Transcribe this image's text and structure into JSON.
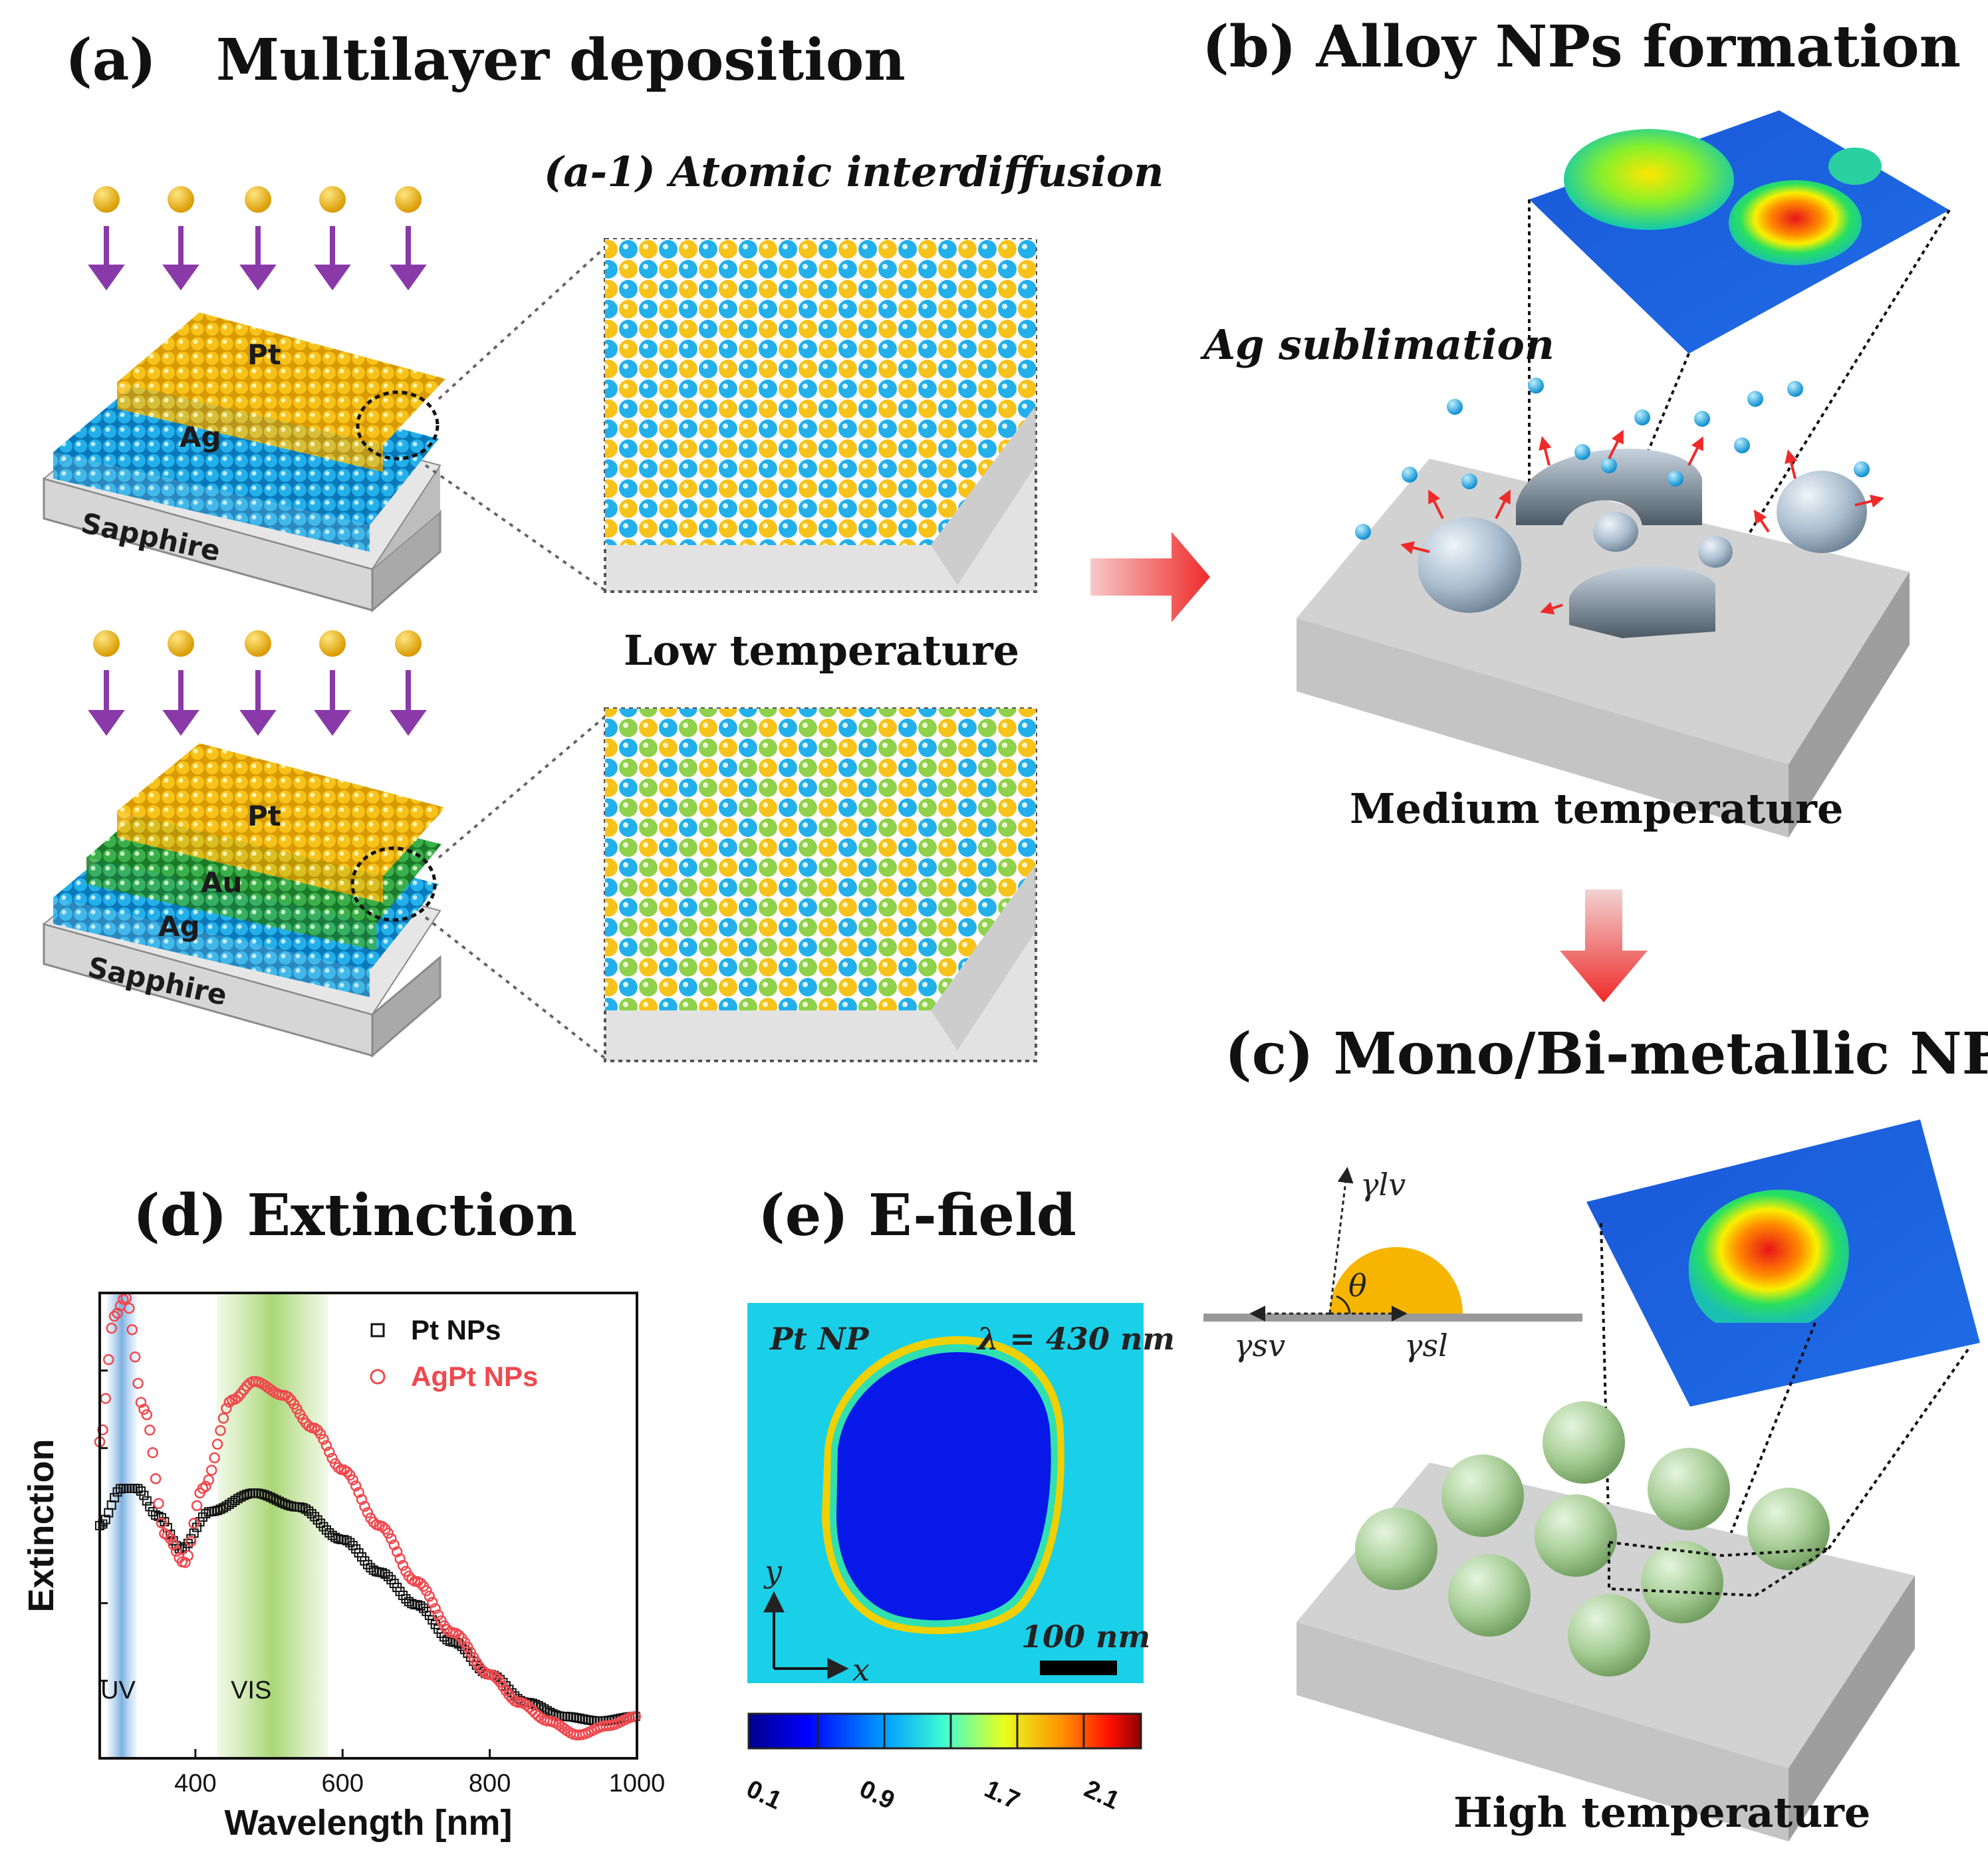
{
  "panels": {
    "a": {
      "title": "(a)   Multilayer deposition"
    },
    "a1": {
      "title": "(a-1) Atomic interdiffusion"
    },
    "b": {
      "title": "(b) Alloy NPs formation",
      "note": "Ag sublimation",
      "temp": "Medium temperature"
    },
    "c": {
      "title": "(c) Mono/Bi-metallic NPs",
      "temp": "High temperature"
    },
    "d": {
      "title": "(d) Extinction"
    },
    "e": {
      "title": "(e) E-field"
    },
    "low_temp": "Low temperature"
  },
  "stack_top": {
    "layers": [
      "Pt",
      "Ag"
    ],
    "substrate": "Sapphire"
  },
  "stack_bottom": {
    "layers": [
      "Pt",
      "Au",
      "Ag"
    ],
    "substrate": "Sapphire"
  },
  "wetting": {
    "gamma_lv": "γlv",
    "gamma_sv": "γsv",
    "gamma_sl": "γsl",
    "theta": "θ"
  },
  "efield": {
    "np_label": "Pt NP",
    "wavelength": "λ = 430 nm",
    "scale_bar": "100 nm",
    "axis_x": "x",
    "axis_y": "y",
    "colorbar_ticks": [
      "0.1",
      "0.9",
      "1.7",
      "2.1"
    ]
  },
  "colors": {
    "pt": "#f2b705",
    "ag": "#1aa7e0",
    "au": "#2e9e3a",
    "arrow_purple": "#8a3aa8",
    "process_arrow": "#ef3a3a",
    "agpt_red": "#f0484e",
    "uv_band": "#8fbde8",
    "vis_band": "#a8d870"
  },
  "chart_data": {
    "type": "scatter",
    "title": "(d) Extinction",
    "xlabel": "Wavelength [nm]",
    "ylabel": "Extinction",
    "xlim": [
      270,
      1000
    ],
    "xticks": [
      400,
      600,
      800,
      1000
    ],
    "bands": [
      {
        "label": "UV",
        "x0": 280,
        "x1": 320
      },
      {
        "label": "VIS",
        "x0": 430,
        "x1": 580
      }
    ],
    "legend_position": "top-right",
    "series": [
      {
        "name": "Pt NPs",
        "marker": "square",
        "color": "#111111",
        "x": [
          270,
          300,
          320,
          350,
          380,
          420,
          480,
          540,
          600,
          650,
          700,
          750,
          800,
          850,
          900,
          950,
          1000
        ],
        "y": [
          0.5,
          0.58,
          0.58,
          0.52,
          0.45,
          0.53,
          0.57,
          0.54,
          0.47,
          0.4,
          0.33,
          0.25,
          0.18,
          0.12,
          0.09,
          0.08,
          0.09
        ]
      },
      {
        "name": "AgPt NPs",
        "marker": "circle",
        "color": "#f0484e",
        "x": [
          270,
          290,
          305,
          330,
          360,
          385,
          410,
          450,
          480,
          520,
          560,
          600,
          650,
          700,
          750,
          800,
          840,
          880,
          920,
          960,
          1000
        ],
        "y": [
          0.68,
          0.95,
          0.99,
          0.75,
          0.48,
          0.42,
          0.58,
          0.77,
          0.81,
          0.78,
          0.71,
          0.62,
          0.5,
          0.38,
          0.27,
          0.18,
          0.12,
          0.08,
          0.05,
          0.07,
          0.09
        ]
      }
    ]
  }
}
